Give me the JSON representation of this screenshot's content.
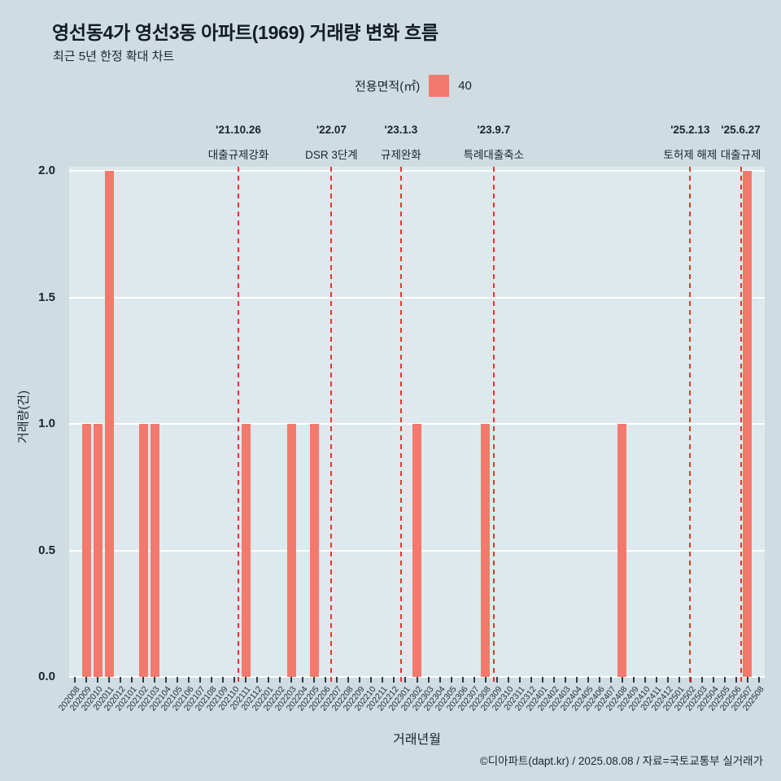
{
  "page": {
    "footer": "©디아파트(dapt.kr) / 2025.08.08 / 자료=국토교통부 실거래가"
  },
  "legend": {
    "title": "전용면적(㎡)",
    "items": [
      {
        "label": "40",
        "color": "#f4796d"
      }
    ]
  },
  "colors": {
    "background": "#cfdce1",
    "panel": "#dde9ec",
    "bar": "#f4796d",
    "annotation_line": "#e8352b",
    "grid": "#ffffff",
    "text": "#1a242e"
  },
  "chart_data": {
    "type": "bar",
    "title": "영선동4가 영선3동 아파트(1969) 거래량 변화 흐름",
    "subtitle": "최근 5년 한정 확대 차트",
    "xlabel": "거래년월",
    "ylabel": "거래량(건)",
    "ylim": [
      0,
      2.0
    ],
    "yticks": [
      0,
      0.5,
      1,
      1.5,
      2
    ],
    "legend_position": "top-center",
    "grid": "horizontal-white",
    "categories": [
      "202008",
      "202009",
      "202010",
      "202011",
      "202012",
      "202101",
      "202102",
      "202103",
      "202104",
      "202105",
      "202106",
      "202107",
      "202108",
      "202109",
      "202110",
      "202111",
      "202112",
      "202201",
      "202202",
      "202203",
      "202204",
      "202205",
      "202206",
      "202207",
      "202208",
      "202209",
      "202210",
      "202211",
      "202212",
      "202301",
      "202302",
      "202303",
      "202304",
      "202305",
      "202306",
      "202307",
      "202308",
      "202309",
      "202310",
      "202311",
      "202312",
      "202401",
      "202402",
      "202403",
      "202404",
      "202405",
      "202406",
      "202407",
      "202408",
      "202409",
      "202410",
      "202411",
      "202412",
      "202501",
      "202502",
      "202503",
      "202504",
      "202505",
      "202506",
      "202507",
      "202508"
    ],
    "series": [
      {
        "name": "40",
        "values": [
          0,
          1,
          1,
          2,
          0,
          0,
          1,
          1,
          0,
          0,
          0,
          0,
          0,
          0,
          0,
          1,
          0,
          0,
          0,
          1,
          0,
          1,
          0,
          0,
          0,
          0,
          0,
          0,
          0,
          0,
          1,
          0,
          0,
          0,
          0,
          0,
          1,
          0,
          0,
          0,
          0,
          0,
          0,
          0,
          0,
          0,
          0,
          0,
          1,
          0,
          0,
          0,
          0,
          0,
          0,
          0,
          0,
          0,
          0,
          2,
          0
        ]
      }
    ],
    "annotations": [
      {
        "date": "'21.10.26",
        "label": "대출규제강화",
        "index": 14.84
      },
      {
        "date": "'22.07",
        "label": "DSR 3단계",
        "index": 23.0
      },
      {
        "date": "'23.1.3",
        "label": "규제완화",
        "index": 29.1
      },
      {
        "date": "'23.9.7",
        "label": "특례대출축소",
        "index": 37.23
      },
      {
        "date": "'25.2.13",
        "label": "토허제 해제",
        "index": 54.46
      },
      {
        "date": "'25.6.27",
        "label": "대출규제",
        "index": 58.9
      }
    ]
  }
}
